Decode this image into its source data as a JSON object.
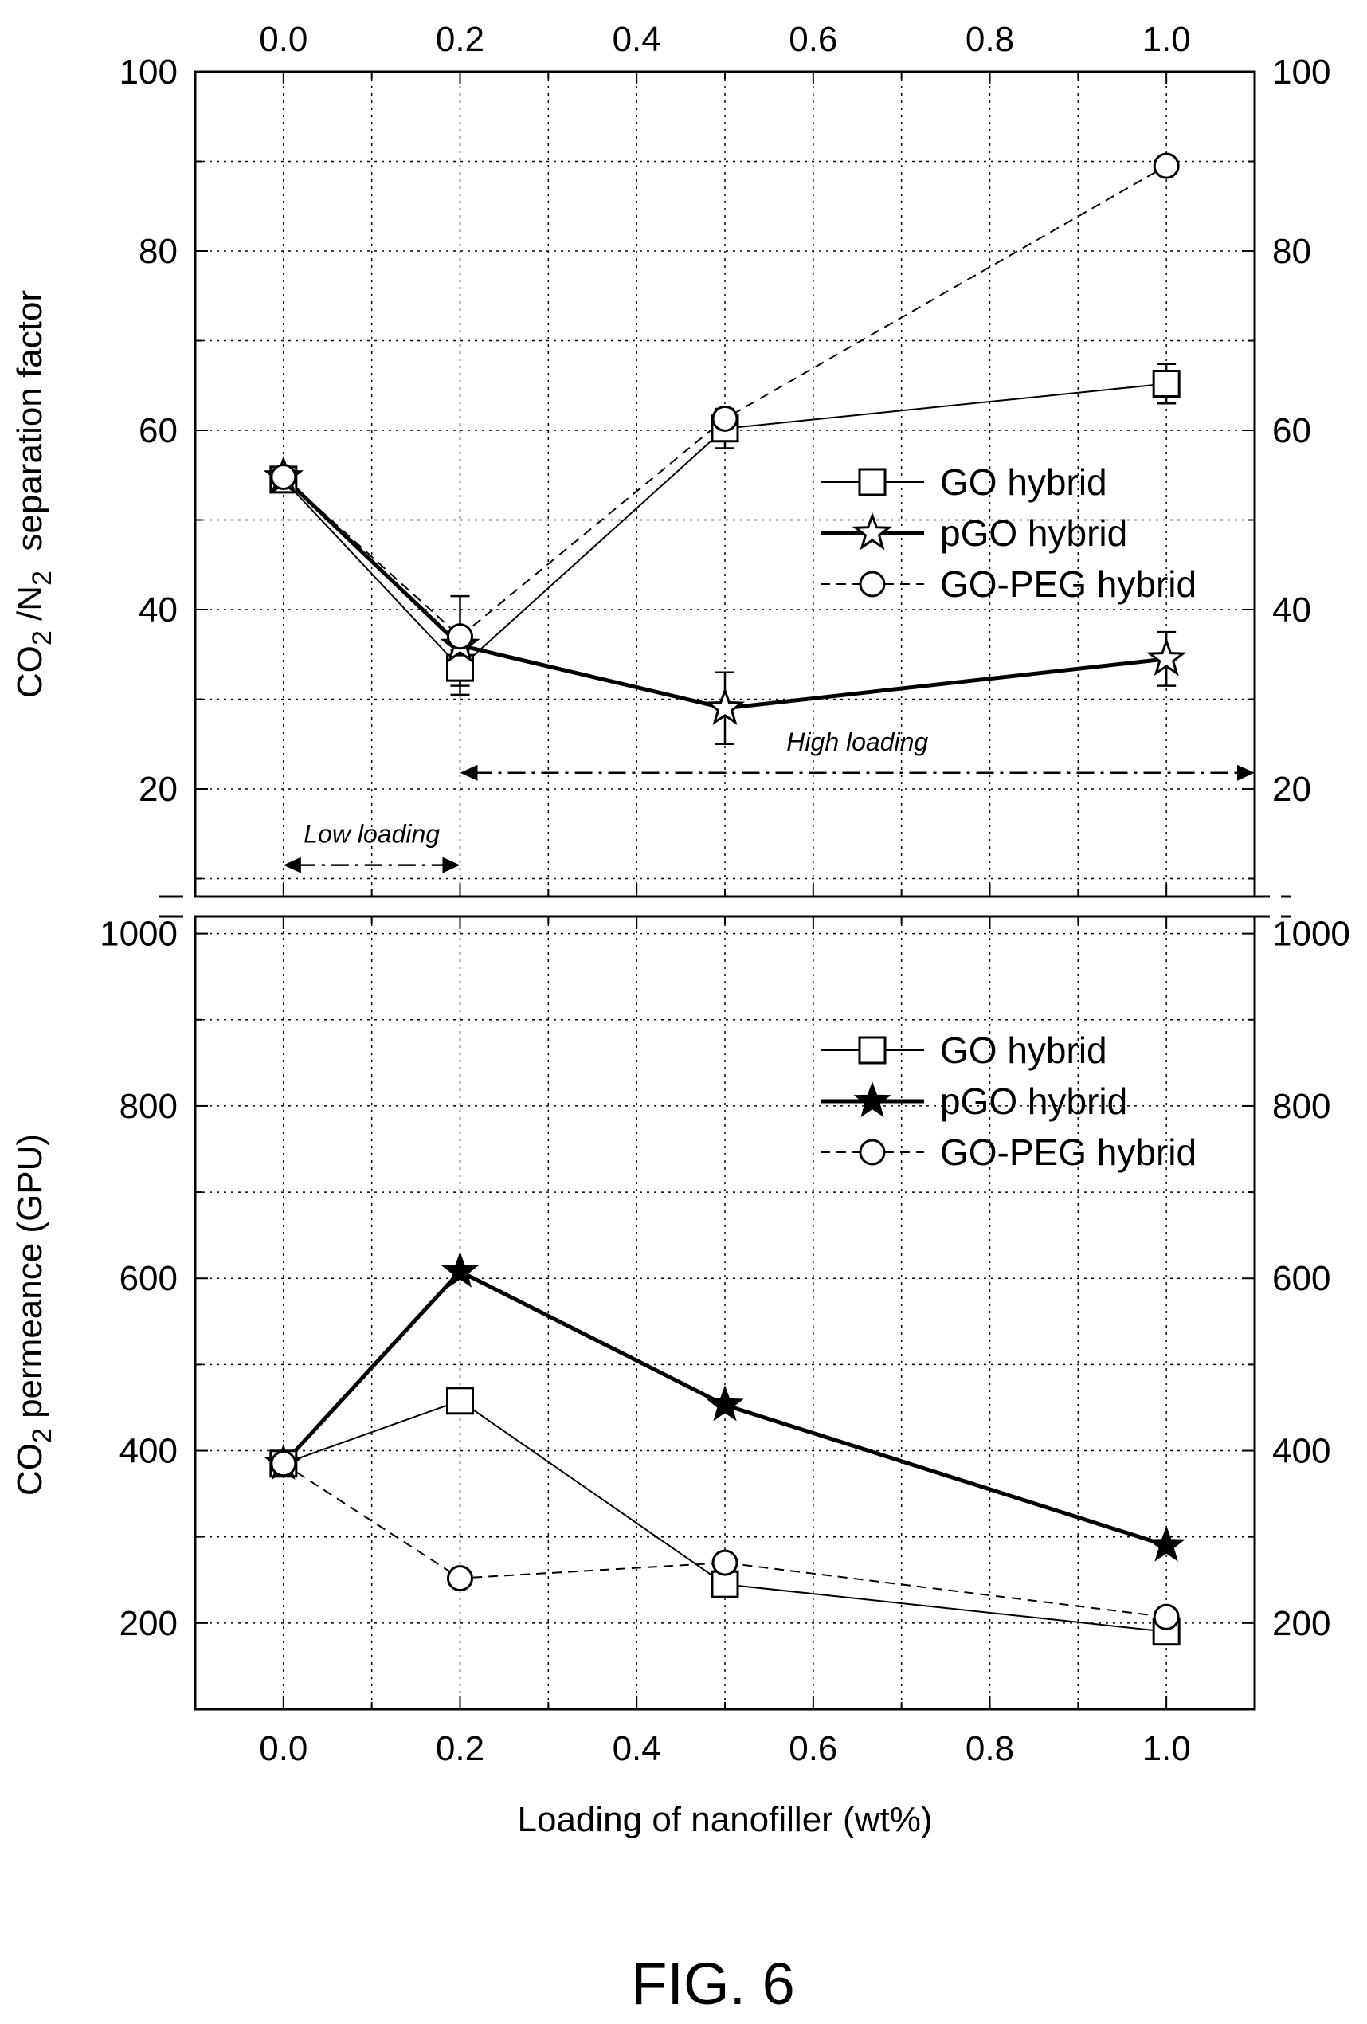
{
  "figure_label": "FIG. 6",
  "chart_data": [
    {
      "type": "line",
      "panel": "top",
      "xlabel": "",
      "ylabel_parts": {
        "a": "CO",
        "a_sub": "2",
        "b": " /N",
        "b_sub": "2",
        "c": "  separation factor"
      },
      "xlim": [
        -0.1,
        1.1
      ],
      "ylim": [
        8,
        100
      ],
      "x_ticks": [
        "0.0",
        "0.2",
        "0.4",
        "0.6",
        "0.8",
        "1.0"
      ],
      "y_ticks": [
        "20",
        "40",
        "60",
        "80",
        "100"
      ],
      "grid": true,
      "legend_position": "right-middle",
      "series": [
        {
          "name": "GO hybrid",
          "marker": "open-square",
          "line": "thin-solid",
          "x": [
            0.0,
            0.2,
            0.5,
            1.0
          ],
          "y": [
            54.5,
            33.5,
            60.2,
            65.2
          ],
          "err": [
            0,
            2.0,
            2.2,
            2.2
          ]
        },
        {
          "name": "pGO hybrid",
          "marker": "open-star",
          "line": "thick-solid",
          "x": [
            0.0,
            0.2,
            0.5,
            1.0
          ],
          "y": [
            54.8,
            36,
            29,
            34.5
          ],
          "err": [
            0,
            5.5,
            4.0,
            3.0
          ]
        },
        {
          "name": "GO-PEG hybrid",
          "marker": "open-circle",
          "line": "dashed",
          "x": [
            0.0,
            0.2,
            0.5,
            1.0
          ],
          "y": [
            54.8,
            37,
            61.3,
            89.5
          ],
          "err": [
            0,
            0,
            0,
            0
          ]
        }
      ],
      "annotations": [
        {
          "text": "Low loading",
          "x_from": 0.0,
          "x_to": 0.2,
          "y": 11.5
        },
        {
          "text": "High loading",
          "x_from": 0.2,
          "x_to": 1.1,
          "y": 21.8
        }
      ]
    },
    {
      "type": "line",
      "panel": "bottom",
      "xlabel": "Loading of nanofiller (wt%)",
      "ylabel_parts": {
        "a": "CO",
        "a_sub": "2",
        "c": " permeance (GPU)"
      },
      "xlim": [
        -0.1,
        1.1
      ],
      "ylim": [
        100,
        1020
      ],
      "x_ticks": [
        "0.0",
        "0.2",
        "0.4",
        "0.6",
        "0.8",
        "1.0"
      ],
      "y_ticks": [
        "200",
        "400",
        "600",
        "800",
        "1000"
      ],
      "grid": true,
      "legend_position": "top-right",
      "series": [
        {
          "name": "GO hybrid",
          "marker": "open-square",
          "line": "thin-solid",
          "x": [
            0.0,
            0.2,
            0.5,
            1.0
          ],
          "y": [
            385,
            458,
            245,
            190
          ]
        },
        {
          "name": "pGO hybrid",
          "marker": "filled-star",
          "line": "thick-solid",
          "x": [
            0.0,
            0.2,
            0.5,
            1.0
          ],
          "y": [
            385,
            608,
            453,
            290
          ]
        },
        {
          "name": "GO-PEG hybrid",
          "marker": "open-circle",
          "line": "dashed",
          "x": [
            0.0,
            0.2,
            0.5,
            1.0
          ],
          "y": [
            385,
            252,
            270,
            207
          ]
        }
      ]
    }
  ],
  "colors": {
    "ink": "#000000",
    "grid": "#000000",
    "background": "#ffffff"
  }
}
